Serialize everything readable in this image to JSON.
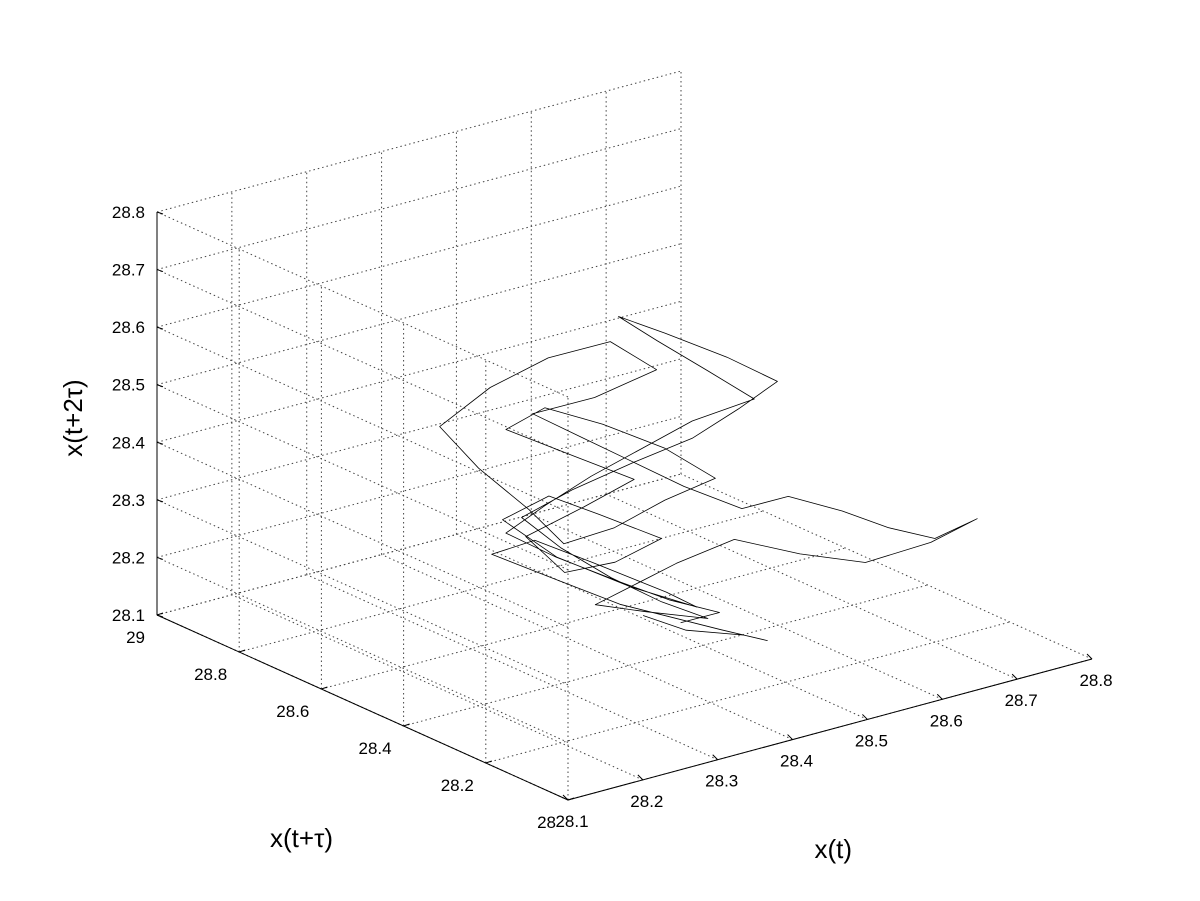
{
  "chart_data": {
    "type": "line",
    "subtype": "3d-phase-space-trajectory",
    "title": "",
    "xlabel": "x(t)",
    "ylabel": "x(t+τ)",
    "zlabel": "x(t+2τ)",
    "xlim": [
      28.1,
      28.8
    ],
    "ylim": [
      28.0,
      29.0
    ],
    "zlim": [
      28.1,
      28.8
    ],
    "xticks": [
      "28.1",
      "28.2",
      "28.3",
      "28.4",
      "28.5",
      "28.6",
      "28.7",
      "28.8"
    ],
    "yticks": [
      "28",
      "28.2",
      "28.4",
      "28.6",
      "28.8",
      "29"
    ],
    "zticks": [
      "28.1",
      "28.2",
      "28.3",
      "28.4",
      "28.5",
      "28.6",
      "28.7",
      "28.8"
    ],
    "grid": true,
    "line_color": "#000000",
    "series": [
      {
        "points": [
          [
            28.42,
            28.4,
            28.18
          ],
          [
            28.45,
            28.35,
            28.16
          ],
          [
            28.5,
            28.3,
            28.15
          ],
          [
            28.52,
            28.28,
            28.14
          ],
          [
            28.48,
            28.32,
            28.16
          ],
          [
            28.4,
            28.42,
            28.2
          ],
          [
            28.35,
            28.48,
            28.24
          ],
          [
            28.3,
            28.55,
            28.28
          ],
          [
            28.33,
            28.5,
            28.31
          ],
          [
            28.38,
            28.45,
            28.27
          ],
          [
            28.44,
            28.38,
            28.22
          ],
          [
            28.47,
            28.36,
            28.19
          ],
          [
            28.42,
            28.43,
            28.22
          ],
          [
            28.36,
            28.5,
            28.27
          ],
          [
            28.32,
            28.56,
            28.33
          ],
          [
            28.36,
            28.52,
            28.37
          ],
          [
            28.4,
            28.47,
            28.34
          ],
          [
            28.45,
            28.41,
            28.3
          ],
          [
            28.41,
            28.45,
            28.26
          ],
          [
            28.37,
            28.5,
            28.24
          ],
          [
            28.34,
            28.54,
            28.3
          ],
          [
            28.39,
            28.49,
            28.35
          ],
          [
            28.43,
            28.44,
            28.4
          ],
          [
            28.38,
            28.5,
            28.44
          ],
          [
            28.33,
            28.57,
            28.48
          ],
          [
            28.36,
            28.53,
            28.52
          ],
          [
            28.41,
            28.48,
            28.49
          ],
          [
            28.46,
            28.42,
            28.45
          ],
          [
            28.5,
            28.37,
            28.4
          ],
          [
            28.46,
            28.42,
            28.36
          ],
          [
            28.42,
            28.47,
            28.31
          ],
          [
            28.38,
            28.52,
            28.28
          ],
          [
            28.35,
            28.55,
            28.34
          ],
          [
            28.31,
            28.6,
            28.41
          ],
          [
            28.28,
            28.64,
            28.48
          ],
          [
            28.32,
            28.59,
            28.55
          ],
          [
            28.37,
            28.54,
            28.6
          ],
          [
            28.42,
            28.48,
            28.63
          ],
          [
            28.46,
            28.44,
            28.58
          ],
          [
            28.41,
            28.5,
            28.53
          ],
          [
            28.36,
            28.56,
            28.5
          ],
          [
            28.4,
            28.51,
            28.46
          ],
          [
            28.44,
            28.46,
            28.42
          ],
          [
            28.48,
            28.41,
            28.38
          ],
          [
            28.53,
            28.36,
            28.34
          ],
          [
            28.57,
            28.32,
            28.36
          ],
          [
            28.62,
            28.28,
            28.33
          ],
          [
            28.66,
            28.24,
            28.3
          ],
          [
            28.7,
            28.2,
            28.28
          ],
          [
            28.74,
            28.17,
            28.31
          ],
          [
            28.7,
            28.21,
            28.27
          ],
          [
            28.64,
            28.26,
            28.24
          ],
          [
            28.58,
            28.31,
            28.26
          ],
          [
            28.52,
            28.36,
            28.29
          ],
          [
            28.47,
            28.41,
            28.25
          ],
          [
            28.43,
            28.45,
            28.21
          ],
          [
            28.4,
            28.48,
            28.18
          ],
          [
            28.44,
            28.43,
            28.17
          ],
          [
            28.49,
            28.37,
            28.16
          ],
          [
            28.45,
            28.41,
            28.19
          ],
          [
            28.41,
            28.46,
            28.23
          ],
          [
            28.37,
            28.51,
            28.28
          ],
          [
            28.34,
            28.55,
            28.33
          ],
          [
            28.38,
            28.5,
            28.38
          ],
          [
            28.43,
            28.44,
            28.43
          ],
          [
            28.48,
            28.39,
            28.47
          ],
          [
            28.52,
            28.35,
            28.52
          ],
          [
            28.55,
            28.31,
            28.57
          ],
          [
            28.51,
            28.36,
            28.61
          ],
          [
            28.46,
            28.42,
            28.65
          ],
          [
            28.42,
            28.46,
            28.68
          ],
          [
            28.45,
            28.42,
            28.64
          ],
          [
            28.49,
            28.37,
            28.59
          ],
          [
            28.53,
            28.33,
            28.54
          ],
          [
            28.48,
            28.39,
            28.5
          ],
          [
            28.44,
            28.44,
            28.45
          ],
          [
            28.4,
            28.49,
            28.4
          ],
          [
            28.36,
            28.53,
            28.35
          ],
          [
            28.33,
            28.57,
            28.3
          ],
          [
            28.37,
            28.52,
            28.26
          ],
          [
            28.42,
            28.46,
            28.22
          ],
          [
            28.46,
            28.41,
            28.19
          ],
          [
            28.5,
            28.36,
            28.17
          ],
          [
            28.47,
            28.4,
            28.15
          ]
        ]
      }
    ]
  }
}
